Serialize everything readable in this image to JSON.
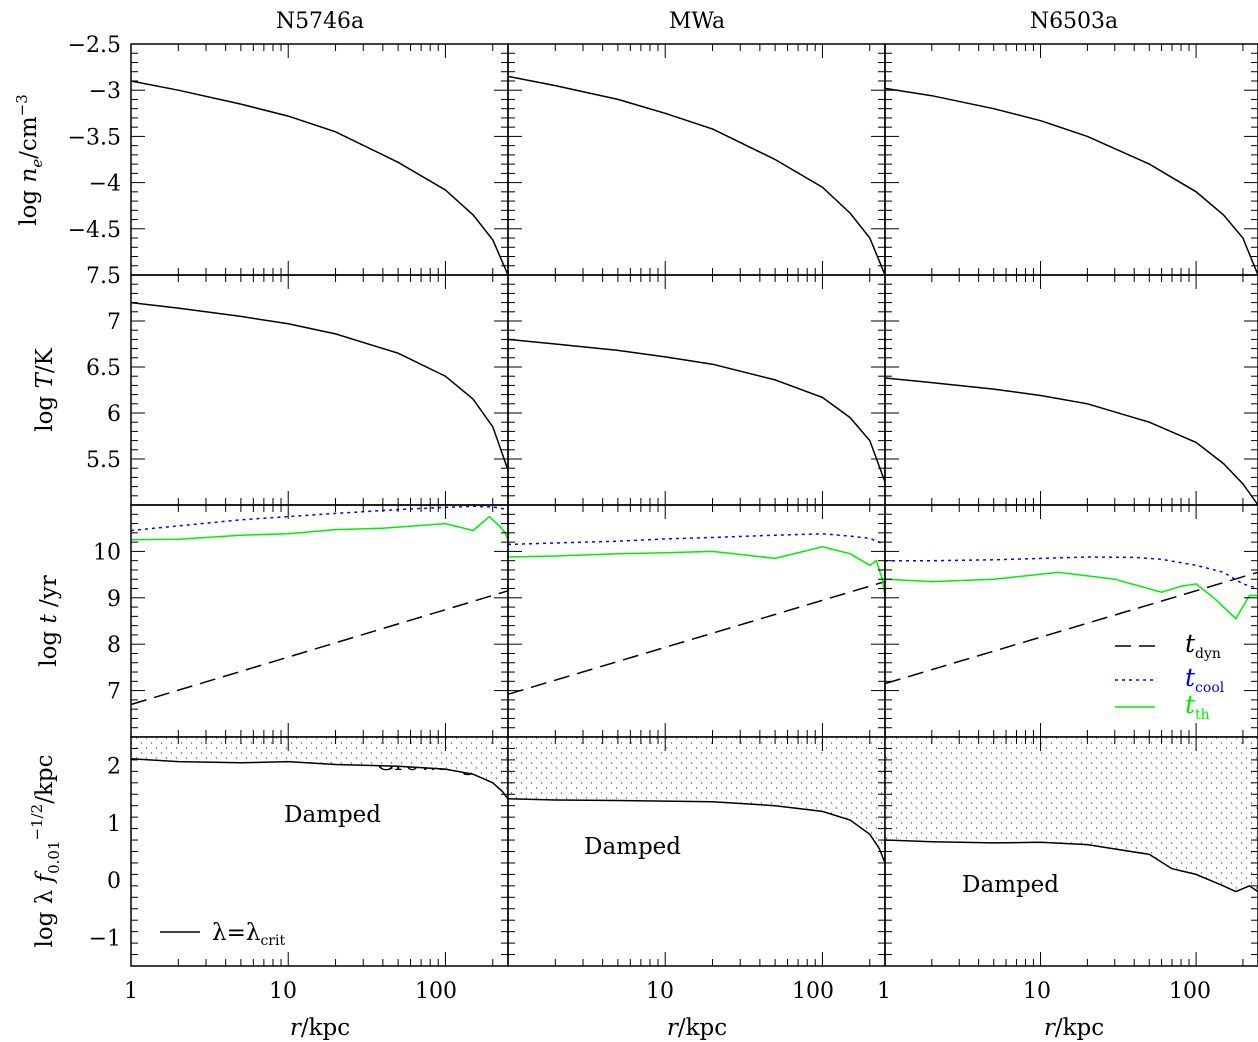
{
  "figure": {
    "columns": [
      "N5746a",
      "MWa",
      "N6503a"
    ],
    "xlabel": "r/kpc",
    "x_tick_labels": [
      "1",
      "10",
      "100"
    ],
    "row_ylabels": {
      "density": "log n_e/cm^-3",
      "temperature": "log T/K",
      "timescale": "log t/yr",
      "wavelength": "log λ f_0.01^-1/2/kpc"
    },
    "legend_timescales": [
      "t_dyn",
      "t_cool",
      "t_th"
    ],
    "legend_wavelength": "λ=λ_crit",
    "region_labels": [
      "Growing",
      "Damped"
    ]
  },
  "colors": {
    "tdyn": "#000000",
    "tcool": "#0000ff",
    "tth": "#00ee00",
    "curve": "#000000"
  },
  "chart_data": [
    {
      "type": "line",
      "panel": "N5746a / density",
      "title": "N5746a",
      "xlabel": "",
      "ylabel": "log n_e/cm^-3",
      "xscale": "log",
      "xlim": [
        1,
        250
      ],
      "ylim": [
        -5,
        -2.5
      ],
      "yticks": [
        -4.5,
        -4,
        -3.5,
        -3,
        -2.5
      ],
      "series": [
        {
          "x": [
            1,
            2,
            5,
            10,
            20,
            50,
            100,
            150,
            200,
            250
          ],
          "values": [
            -2.9,
            -3.0,
            -3.15,
            -3.28,
            -3.45,
            -3.78,
            -4.08,
            -4.35,
            -4.62,
            -5.0
          ]
        }
      ]
    },
    {
      "type": "line",
      "panel": "MWa / density",
      "title": "MWa",
      "xlabel": "",
      "ylabel": "",
      "xscale": "log",
      "xlim": [
        1,
        250
      ],
      "ylim": [
        -5,
        -2.5
      ],
      "series": [
        {
          "x": [
            1,
            2,
            5,
            10,
            20,
            50,
            100,
            150,
            200,
            250
          ],
          "values": [
            -2.85,
            -2.95,
            -3.1,
            -3.25,
            -3.42,
            -3.75,
            -4.05,
            -4.33,
            -4.6,
            -5.0
          ]
        }
      ]
    },
    {
      "type": "line",
      "panel": "N6503a / density",
      "title": "N6503a",
      "xlabel": "",
      "ylabel": "",
      "xscale": "log",
      "xlim": [
        1,
        250
      ],
      "ylim": [
        -5,
        -2.5
      ],
      "series": [
        {
          "x": [
            1,
            2,
            5,
            10,
            20,
            50,
            100,
            150,
            200,
            250
          ],
          "values": [
            -2.98,
            -3.06,
            -3.2,
            -3.33,
            -3.5,
            -3.8,
            -4.1,
            -4.35,
            -4.6,
            -5.0
          ]
        }
      ]
    },
    {
      "type": "line",
      "panel": "N5746a / temperature",
      "xlabel": "",
      "ylabel": "log T/K",
      "xscale": "log",
      "xlim": [
        1,
        250
      ],
      "ylim": [
        5,
        7.5
      ],
      "yticks": [
        5.5,
        6,
        6.5,
        7,
        7.5
      ],
      "series": [
        {
          "x": [
            1,
            2,
            5,
            10,
            20,
            50,
            100,
            150,
            200,
            250
          ],
          "values": [
            7.2,
            7.14,
            7.05,
            6.97,
            6.86,
            6.65,
            6.4,
            6.15,
            5.85,
            5.38
          ]
        }
      ]
    },
    {
      "type": "line",
      "panel": "MWa / temperature",
      "xlabel": "",
      "ylabel": "",
      "xscale": "log",
      "xlim": [
        1,
        250
      ],
      "ylim": [
        5,
        7.5
      ],
      "series": [
        {
          "x": [
            1,
            2,
            5,
            10,
            20,
            50,
            100,
            150,
            200,
            250
          ],
          "values": [
            6.8,
            6.75,
            6.68,
            6.61,
            6.53,
            6.36,
            6.17,
            5.95,
            5.7,
            5.25
          ]
        }
      ]
    },
    {
      "type": "line",
      "panel": "N6503a / temperature",
      "xlabel": "",
      "ylabel": "",
      "xscale": "log",
      "xlim": [
        1,
        250
      ],
      "ylim": [
        5,
        7.5
      ],
      "series": [
        {
          "x": [
            1,
            2,
            5,
            10,
            20,
            50,
            100,
            150,
            200,
            250
          ],
          "values": [
            6.38,
            6.33,
            6.26,
            6.19,
            6.1,
            5.9,
            5.68,
            5.45,
            5.23,
            5.0
          ]
        }
      ]
    },
    {
      "type": "line",
      "panel": "N5746a / timescale",
      "xlabel": "",
      "ylabel": "log t/yr",
      "xscale": "log",
      "xlim": [
        1,
        250
      ],
      "ylim": [
        6,
        11
      ],
      "yticks": [
        7,
        8,
        9,
        10
      ],
      "series": [
        {
          "name": "t_dyn",
          "x": [
            1,
            250
          ],
          "values": [
            6.7,
            9.15
          ]
        },
        {
          "name": "t_cool",
          "x": [
            1,
            2,
            5,
            10,
            20,
            50,
            100,
            150,
            200,
            250
          ],
          "values": [
            10.45,
            10.55,
            10.68,
            10.75,
            10.82,
            10.9,
            10.95,
            10.97,
            10.96,
            10.9
          ]
        },
        {
          "name": "t_th",
          "x": [
            1,
            2,
            5,
            10,
            20,
            40,
            100,
            150,
            190,
            220,
            240,
            250
          ],
          "values": [
            10.25,
            10.26,
            10.35,
            10.38,
            10.47,
            10.5,
            10.6,
            10.45,
            10.75,
            10.55,
            10.4,
            10.25
          ]
        }
      ]
    },
    {
      "type": "line",
      "panel": "MWa / timescale",
      "xlabel": "",
      "ylabel": "",
      "xscale": "log",
      "xlim": [
        1,
        250
      ],
      "ylim": [
        6,
        11
      ],
      "series": [
        {
          "name": "t_dyn",
          "x": [
            1,
            250
          ],
          "values": [
            6.92,
            9.35
          ]
        },
        {
          "name": "t_cool",
          "x": [
            1,
            2,
            5,
            10,
            20,
            50,
            100,
            150,
            200,
            250
          ],
          "values": [
            10.15,
            10.18,
            10.22,
            10.27,
            10.3,
            10.35,
            10.38,
            10.33,
            10.28,
            10.15
          ]
        },
        {
          "name": "t_th",
          "x": [
            1,
            2,
            5,
            10,
            20,
            50,
            100,
            150,
            200,
            220,
            240,
            250
          ],
          "values": [
            9.88,
            9.9,
            9.95,
            9.97,
            10.0,
            9.85,
            10.1,
            9.95,
            9.7,
            9.8,
            9.4,
            9.05
          ]
        }
      ]
    },
    {
      "type": "line",
      "panel": "N6503a / timescale",
      "xlabel": "",
      "ylabel": "",
      "xscale": "log",
      "xlim": [
        1,
        250
      ],
      "ylim": [
        6,
        11
      ],
      "series": [
        {
          "name": "t_dyn",
          "x": [
            1,
            250
          ],
          "values": [
            7.15,
            9.55
          ]
        },
        {
          "name": "t_cool",
          "x": [
            1,
            2,
            5,
            10,
            20,
            40,
            60,
            100,
            150,
            200,
            250
          ],
          "values": [
            9.8,
            9.8,
            9.82,
            9.85,
            9.88,
            9.87,
            9.83,
            9.7,
            9.55,
            9.3,
            9.2
          ]
        },
        {
          "name": "t_th",
          "x": [
            1,
            2,
            5,
            13,
            30,
            60,
            80,
            100,
            130,
            180,
            220,
            250
          ],
          "values": [
            9.4,
            9.35,
            9.4,
            9.55,
            9.4,
            9.12,
            9.25,
            9.3,
            9.0,
            8.55,
            9.05,
            9.05
          ]
        }
      ]
    },
    {
      "type": "area",
      "panel": "N5746a / wavelength",
      "xlabel": "r/kpc",
      "ylabel": "log λ f_0.01^-1/2/kpc",
      "xscale": "log",
      "xlim": [
        1,
        250
      ],
      "ylim": [
        -1.5,
        2.5
      ],
      "yticks": [
        -1,
        0,
        1,
        2
      ],
      "series": [
        {
          "name": "λ=λ_crit",
          "x": [
            1,
            2,
            5,
            10,
            20,
            50,
            100,
            150,
            200,
            230,
            250
          ],
          "values": [
            2.12,
            2.07,
            2.05,
            2.07,
            2.02,
            1.99,
            1.94,
            1.85,
            1.7,
            1.55,
            1.42
          ]
        }
      ]
    },
    {
      "type": "area",
      "panel": "MWa / wavelength",
      "xlabel": "r/kpc",
      "ylabel": "",
      "xscale": "log",
      "xlim": [
        1,
        250
      ],
      "ylim": [
        -1.5,
        2.5
      ],
      "series": [
        {
          "x": [
            1,
            2,
            5,
            10,
            20,
            50,
            100,
            150,
            200,
            230,
            250
          ],
          "values": [
            1.42,
            1.4,
            1.39,
            1.38,
            1.37,
            1.3,
            1.2,
            1.05,
            0.8,
            0.55,
            0.3
          ]
        }
      ]
    },
    {
      "type": "area",
      "panel": "N6503a / wavelength",
      "xlabel": "r/kpc",
      "ylabel": "",
      "xscale": "log",
      "xlim": [
        1,
        250
      ],
      "ylim": [
        -1.5,
        2.5
      ],
      "series": [
        {
          "x": [
            1,
            2,
            5,
            10,
            20,
            50,
            70,
            100,
            150,
            180,
            220,
            250
          ],
          "values": [
            0.7,
            0.67,
            0.65,
            0.66,
            0.62,
            0.45,
            0.2,
            0.1,
            -0.1,
            -0.2,
            -0.1,
            -0.2
          ]
        }
      ]
    }
  ]
}
